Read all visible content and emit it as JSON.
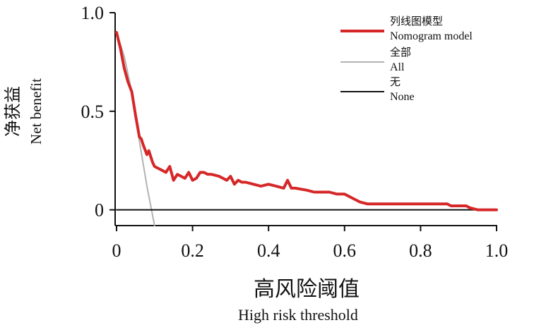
{
  "chart_data": {
    "type": "line",
    "xlabel_zh": "高风险阈值",
    "xlabel_en": "High risk threshold",
    "ylabel_zh": "净获益",
    "ylabel_en": "Net benefit",
    "xlim": [
      0,
      1.0
    ],
    "ylim": [
      -0.08,
      1.0
    ],
    "x_ticks": [
      0,
      0.2,
      0.4,
      0.6,
      0.8,
      1.0
    ],
    "x_tick_labels": [
      "0",
      "0.2",
      "0.4",
      "0.6",
      "0.8",
      "1.0"
    ],
    "y_ticks": [
      0,
      0.5,
      1.0
    ],
    "y_tick_labels": [
      "0",
      "0.5",
      "1.0"
    ],
    "grid": false,
    "legend_position": "top-right",
    "colors": {
      "model": "#d62728",
      "all": "#b3b3b3",
      "none": "#111111"
    },
    "series": [
      {
        "key": "model",
        "name_zh": "列线图模型",
        "name_en": "Nomogram model",
        "x": [
          0.0,
          0.01,
          0.02,
          0.03,
          0.04,
          0.05,
          0.06,
          0.065,
          0.07,
          0.08,
          0.085,
          0.09,
          0.095,
          0.1,
          0.11,
          0.12,
          0.13,
          0.14,
          0.15,
          0.16,
          0.17,
          0.18,
          0.19,
          0.2,
          0.21,
          0.22,
          0.23,
          0.24,
          0.25,
          0.27,
          0.29,
          0.3,
          0.31,
          0.32,
          0.33,
          0.34,
          0.36,
          0.38,
          0.4,
          0.42,
          0.44,
          0.45,
          0.46,
          0.47,
          0.5,
          0.52,
          0.54,
          0.56,
          0.58,
          0.6,
          0.62,
          0.64,
          0.66,
          0.7,
          0.75,
          0.8,
          0.85,
          0.87,
          0.88,
          0.9,
          0.92,
          0.93,
          0.95,
          0.98,
          1.0
        ],
        "y": [
          0.9,
          0.82,
          0.72,
          0.65,
          0.6,
          0.48,
          0.37,
          0.36,
          0.33,
          0.28,
          0.3,
          0.27,
          0.24,
          0.22,
          0.21,
          0.2,
          0.19,
          0.22,
          0.15,
          0.18,
          0.17,
          0.16,
          0.19,
          0.15,
          0.16,
          0.19,
          0.19,
          0.18,
          0.18,
          0.17,
          0.15,
          0.17,
          0.13,
          0.15,
          0.14,
          0.14,
          0.13,
          0.12,
          0.13,
          0.12,
          0.11,
          0.15,
          0.11,
          0.11,
          0.1,
          0.09,
          0.09,
          0.09,
          0.08,
          0.08,
          0.06,
          0.04,
          0.03,
          0.03,
          0.03,
          0.03,
          0.03,
          0.03,
          0.02,
          0.02,
          0.02,
          0.01,
          0.0,
          0.0,
          0.0
        ]
      },
      {
        "key": "all",
        "name_zh": "全部",
        "name_en": "All",
        "x": [
          0.0,
          0.02,
          0.04,
          0.06,
          0.08,
          0.1
        ],
        "y": [
          0.9,
          0.78,
          0.6,
          0.35,
          0.12,
          -0.08
        ]
      },
      {
        "key": "none",
        "name_zh": "无",
        "name_en": "None",
        "x": [
          0.0,
          1.0
        ],
        "y": [
          0.0,
          0.0
        ]
      }
    ]
  }
}
